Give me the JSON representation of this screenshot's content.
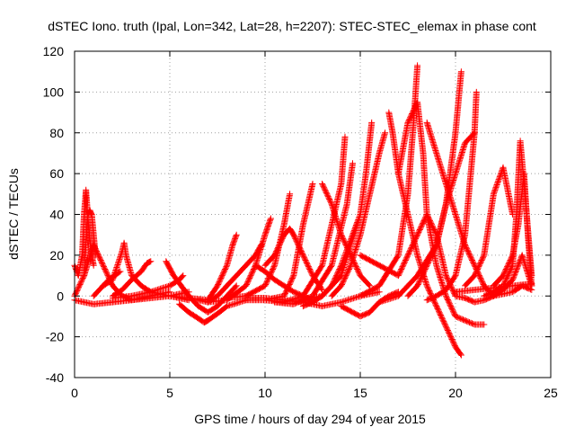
{
  "chart_data": {
    "type": "scatter",
    "title": "dSTEC Iono. truth (Ipal, Lon=342, Lat=28, h=2207): STEC-STEC_elemax in phase cont",
    "xlabel": "GPS time / hours of day 294 of year 2015",
    "ylabel": "dSTEC  / TECUs",
    "xlim": [
      0,
      25
    ],
    "ylim": [
      -40,
      120
    ],
    "xticks": [
      0,
      5,
      10,
      15,
      20,
      25
    ],
    "xtick_labels": [
      "0",
      "5",
      "10",
      "15",
      "20",
      "25"
    ],
    "yticks": [
      -40,
      -20,
      0,
      20,
      40,
      60,
      80,
      100,
      120
    ],
    "ytick_labels": [
      "-40",
      "-20",
      "0",
      "20",
      "40",
      "60",
      "80",
      "100",
      "120"
    ],
    "grid": true,
    "marker": "+",
    "color": "#ff0000",
    "series": [
      {
        "x": [
          0.0,
          0.2,
          0.4,
          0.5,
          0.6,
          0.7,
          0.8,
          0.9,
          1.0
        ],
        "y": [
          15,
          10,
          20,
          40,
          52,
          38,
          28,
          20,
          15
        ]
      },
      {
        "x": [
          0.5,
          0.6,
          0.7,
          0.8,
          0.9,
          1.0,
          1.1
        ],
        "y": [
          10,
          25,
          40,
          42,
          40,
          30,
          20
        ]
      },
      {
        "x": [
          0.0,
          0.5,
          1.0,
          1.5,
          2.0,
          2.5,
          3.0,
          3.5,
          4.0,
          4.5,
          5.0
        ],
        "y": [
          0,
          10,
          25,
          15,
          5,
          0,
          -2,
          -1,
          0,
          1,
          2
        ]
      },
      {
        "x": [
          1.0,
          1.5,
          2.0,
          2.5,
          2.6,
          2.7,
          3.0,
          3.5,
          4.0,
          5.0,
          6.0
        ],
        "y": [
          0,
          5,
          8,
          22,
          26,
          20,
          10,
          5,
          2,
          0,
          -2
        ]
      },
      {
        "x": [
          0.0,
          1.0,
          2.0,
          3.0,
          4.0,
          5.0,
          6.0
        ],
        "y": [
          -2,
          -4,
          -3,
          -2,
          -1,
          0,
          2
        ]
      },
      {
        "x": [
          2.0,
          2.5,
          3.0,
          3.5,
          3.8,
          4.0
        ],
        "y": [
          0,
          3,
          8,
          12,
          16,
          17
        ]
      },
      {
        "x": [
          1.5,
          1.8,
          2.1,
          2.4
        ],
        "y": [
          5,
          8,
          10,
          12
        ]
      },
      {
        "x": [
          4.8,
          5.2,
          5.6,
          6.0,
          6.5,
          7.0,
          7.5,
          8.0,
          8.5
        ],
        "y": [
          17,
          10,
          5,
          0,
          -5,
          -8,
          -5,
          0,
          5
        ]
      },
      {
        "x": [
          5.5,
          6.0,
          6.5,
          6.8,
          7.0,
          7.3,
          7.6,
          8.0,
          9.0
        ],
        "y": [
          -4,
          -8,
          -11,
          -13,
          -12,
          -10,
          -8,
          -5,
          -2
        ]
      },
      {
        "x": [
          2.0,
          3.0,
          4.0,
          5.0,
          5.5,
          5.7
        ],
        "y": [
          -1,
          0,
          2,
          5,
          8,
          10
        ]
      },
      {
        "x": [
          5.0,
          6.0,
          7.0,
          7.5,
          8.0,
          8.3,
          8.5
        ],
        "y": [
          0,
          -1,
          -2,
          5,
          15,
          25,
          30
        ]
      },
      {
        "x": [
          6.5,
          7.0,
          7.5,
          8.0,
          8.5,
          9.0,
          9.5,
          9.8
        ],
        "y": [
          -2,
          -3,
          0,
          5,
          10,
          15,
          20,
          25
        ]
      },
      {
        "x": [
          7.0,
          8.0,
          9.0,
          9.5,
          10.0,
          10.3
        ],
        "y": [
          -3,
          -2,
          5,
          15,
          30,
          38
        ]
      },
      {
        "x": [
          8.0,
          9.0,
          10.0,
          10.5,
          11.0,
          11.3
        ],
        "y": [
          -1,
          0,
          5,
          15,
          35,
          50
        ]
      },
      {
        "x": [
          9.0,
          10.0,
          11.0,
          11.5,
          12.0,
          12.5
        ],
        "y": [
          -2,
          -2,
          0,
          10,
          35,
          55
        ]
      },
      {
        "x": [
          9.5,
          10.0,
          10.5,
          11.0,
          11.5,
          12.0,
          12.5
        ],
        "y": [
          15,
          12,
          8,
          5,
          2,
          0,
          -2
        ]
      },
      {
        "x": [
          10.0,
          10.5,
          11.0,
          11.3,
          11.5,
          12.0,
          12.5,
          13.0
        ],
        "y": [
          15,
          20,
          30,
          33,
          30,
          20,
          10,
          3
        ]
      },
      {
        "x": [
          9.0,
          10.0,
          11.0,
          12.0,
          13.0,
          14.0,
          15.0,
          16.0
        ],
        "y": [
          -1,
          -1,
          -2,
          -3,
          -5,
          -3,
          0,
          2
        ]
      },
      {
        "x": [
          10.0,
          11.0,
          12.0,
          13.0,
          14.0,
          14.2
        ],
        "y": [
          -2,
          -3,
          0,
          15,
          55,
          78
        ]
      },
      {
        "x": [
          10.5,
          11.5,
          12.5,
          13.5,
          14.3,
          14.6
        ],
        "y": [
          -3,
          -4,
          0,
          15,
          45,
          65
        ]
      },
      {
        "x": [
          12.0,
          12.5,
          13.0,
          13.5,
          14.0,
          15.0
        ],
        "y": [
          -5,
          -3,
          0,
          5,
          15,
          40
        ]
      },
      {
        "x": [
          13.0,
          13.5,
          14.0,
          14.5,
          15.0,
          15.5
        ],
        "y": [
          55,
          45,
          30,
          20,
          10,
          5
        ]
      },
      {
        "x": [
          12.0,
          13.0,
          14.0,
          15.0,
          15.3,
          15.6
        ],
        "y": [
          -2,
          0,
          10,
          40,
          60,
          85
        ]
      },
      {
        "x": [
          13.5,
          14.0,
          14.5,
          15.0,
          15.5,
          16.0,
          16.3
        ],
        "y": [
          0,
          5,
          15,
          30,
          50,
          70,
          80
        ]
      },
      {
        "x": [
          14.0,
          15.0,
          15.5,
          16.0,
          16.5,
          17.0
        ],
        "y": [
          -5,
          -10,
          -8,
          -3,
          0,
          2
        ]
      },
      {
        "x": [
          15.0,
          16.0,
          17.0,
          17.5,
          17.8,
          18.0
        ],
        "y": [
          0,
          5,
          20,
          50,
          85,
          113
        ]
      },
      {
        "x": [
          16.5,
          16.7,
          17.0,
          17.5,
          18.0,
          18.5,
          19.0,
          19.5,
          20.0,
          20.3
        ],
        "y": [
          90,
          80,
          60,
          40,
          20,
          5,
          -5,
          -15,
          -25,
          -29
        ]
      },
      {
        "x": [
          17.0,
          17.5,
          18.0,
          18.3,
          18.5,
          19.0,
          19.5,
          20.0,
          21.0,
          21.5
        ],
        "y": [
          60,
          85,
          95,
          70,
          40,
          15,
          0,
          -10,
          -14,
          -14
        ]
      },
      {
        "x": [
          15.0,
          16.0,
          17.0,
          17.5,
          18.0,
          18.5,
          19.0,
          19.5,
          20.0
        ],
        "y": [
          20,
          15,
          10,
          20,
          30,
          40,
          30,
          10,
          0
        ]
      },
      {
        "x": [
          16.0,
          17.0,
          18.0,
          19.0,
          19.5,
          20.0,
          20.5,
          21.0
        ],
        "y": [
          -3,
          0,
          10,
          25,
          45,
          60,
          75,
          80
        ]
      },
      {
        "x": [
          18.5,
          19.0,
          19.5,
          20.0,
          20.5,
          21.0,
          21.5,
          22.0
        ],
        "y": [
          85,
          70,
          55,
          40,
          25,
          15,
          5,
          0
        ]
      },
      {
        "x": [
          17.5,
          18.0,
          18.5,
          19.0,
          19.5,
          20.0,
          20.3
        ],
        "y": [
          0,
          5,
          15,
          25,
          45,
          80,
          110
        ]
      },
      {
        "x": [
          18.5,
          19.0,
          19.5,
          20.0,
          20.5,
          21.0,
          21.1
        ],
        "y": [
          -2,
          0,
          3,
          10,
          30,
          80,
          100
        ]
      },
      {
        "x": [
          20.0,
          20.5,
          21.0,
          21.5,
          22.0,
          22.5,
          23.0,
          23.5,
          24.0
        ],
        "y": [
          0,
          -1,
          -3,
          -2,
          0,
          3,
          8,
          20,
          5
        ]
      },
      {
        "x": [
          20.5,
          21.0,
          21.5,
          22.0,
          22.5,
          23.0
        ],
        "y": [
          5,
          10,
          20,
          50,
          63,
          40
        ]
      },
      {
        "x": [
          21.5,
          22.0,
          22.5,
          23.0,
          23.2,
          23.4,
          23.6,
          24.0
        ],
        "y": [
          0,
          2,
          5,
          15,
          40,
          76,
          55,
          10
        ]
      },
      {
        "x": [
          22.0,
          22.5,
          23.0,
          23.3,
          23.6,
          23.8,
          24.0
        ],
        "y": [
          5,
          10,
          20,
          35,
          60,
          30,
          5
        ]
      },
      {
        "x": [
          22.0,
          23.0,
          23.5,
          24.0
        ],
        "y": [
          0,
          2,
          5,
          3
        ]
      },
      {
        "x": [
          20.0,
          21.0,
          22.0,
          23.0,
          24.0
        ],
        "y": [
          2,
          3,
          4,
          5,
          6
        ]
      }
    ]
  }
}
